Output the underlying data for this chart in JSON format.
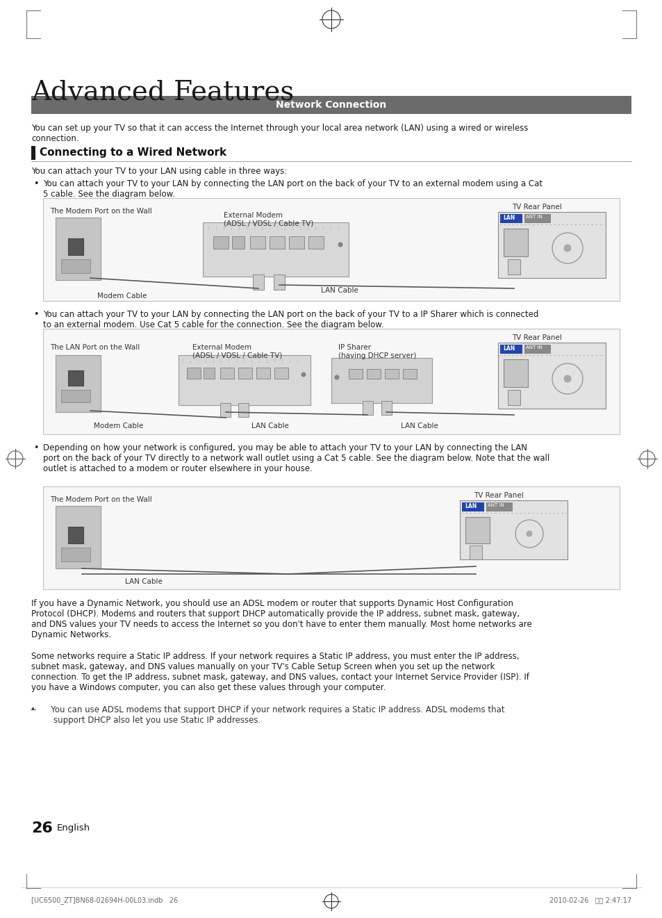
{
  "page_bg": "#ffffff",
  "title": "Advanced Features",
  "section_banner_text": "Network Connection",
  "section_banner_bg": "#6d6d6d",
  "section_banner_fg": "#ffffff",
  "section_heading": "Connecting to a Wired Network",
  "intro_text": "You can set up your TV so that it can access the Internet through your local area network (LAN) using a wired or wireless\nconnection.",
  "sub_heading_intro": "You can attach your TV to your LAN using cable in three ways:",
  "bullet1_text": "You can attach your TV to your LAN by connecting the LAN port on the back of your TV to an external modem using a Cat\n5 cable. See the diagram below.",
  "diag1_labels": {
    "wall_label": "The Modem Port on the Wall",
    "modem_label": "External Modem\n(ADSL / VDSL / Cable TV)",
    "modem_cable": "Modem Cable",
    "lan_cable": "LAN Cable",
    "tv_rear": "TV Rear Panel"
  },
  "bullet2_text": "You can attach your TV to your LAN by connecting the LAN port on the back of your TV to a IP Sharer which is connected\nto an external modem. Use Cat 5 cable for the connection. See the diagram below.",
  "diag2_labels": {
    "wall_label": "The LAN Port on the Wall",
    "modem_label": "External Modem\n(ADSL / VDSL / Cable TV)",
    "sharer_label": "IP Sharer\n(having DHCP server)",
    "modem_cable": "Modem Cable",
    "lan_cable1": "LAN Cable",
    "lan_cable2": "LAN Cable",
    "tv_rear": "TV Rear Panel"
  },
  "bullet3_text": "Depending on how your network is configured, you may be able to attach your TV to your LAN by connecting the LAN\nport on the back of your TV directly to a network wall outlet using a Cat 5 cable. See the diagram below. Note that the wall\noutlet is attached to a modem or router elsewhere in your house.",
  "diag3_labels": {
    "wall_label": "The Modem Port on the Wall",
    "lan_cable": "LAN Cable",
    "tv_rear": "TV Rear Panel"
  },
  "para1": "If you have a Dynamic Network, you should use an ADSL modem or router that supports Dynamic Host Configuration\nProtocol (DHCP). Modems and routers that support DHCP automatically provide the IP address, subnet mask, gateway,\nand DNS values your TV needs to access the Internet so you don't have to enter them manually. Most home networks are\nDynamic Networks.",
  "para2": "Some networks require a Static IP address. If your network requires a Static IP address, you must enter the IP address,\nsubnet mask, gateway, and DNS values manually on your TV's Cable Setup Screen when you set up the network\nconnection. To get the IP address, subnet mask, gateway, and DNS values, contact your Internet Service Provider (ISP). If\nyou have a Windows computer, you can also get these values through your computer.",
  "note_text": "   You can use ADSL modems that support DHCP if your network requires a Static IP address. ADSL modems that\n    support DHCP also let you use Static IP addresses.",
  "page_number": "26",
  "page_lang": "English",
  "footer_left": "[UC6500_ZT]BN68-02694H-00L03.indb   26",
  "footer_right": "2010-02-26   오후 2:47:17",
  "small_font": 7.5,
  "body_font": 8.5,
  "section_font": 11,
  "title_font": 28
}
